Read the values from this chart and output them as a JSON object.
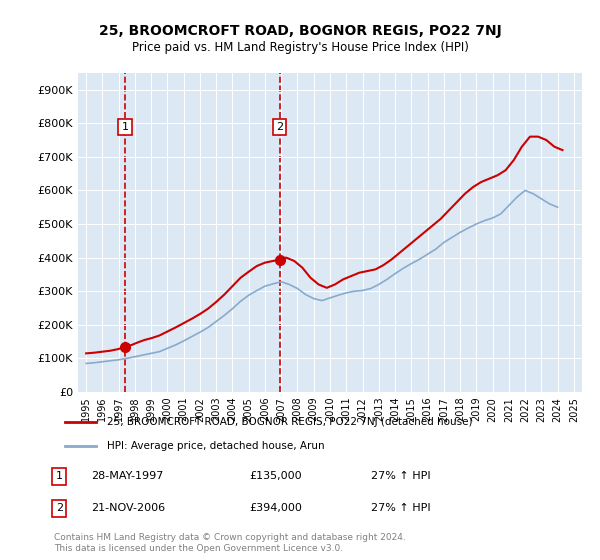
{
  "title": "25, BROOMCROFT ROAD, BOGNOR REGIS, PO22 7NJ",
  "subtitle": "Price paid vs. HM Land Registry's House Price Index (HPI)",
  "legend_line1": "25, BROOMCROFT ROAD, BOGNOR REGIS, PO22 7NJ (detached house)",
  "legend_line2": "HPI: Average price, detached house, Arun",
  "footnote": "Contains HM Land Registry data © Crown copyright and database right 2024.\nThis data is licensed under the Open Government Licence v3.0.",
  "sale1_label": "1",
  "sale1_date": "28-MAY-1997",
  "sale1_price": "£135,000",
  "sale1_hpi": "27% ↑ HPI",
  "sale1_year": 1997.4,
  "sale1_value": 135000,
  "sale2_label": "2",
  "sale2_date": "21-NOV-2006",
  "sale2_price": "£394,000",
  "sale2_hpi": "27% ↑ HPI",
  "sale2_year": 2006.9,
  "sale2_value": 394000,
  "plot_bg": "#dce9f5",
  "line_red": "#cc0000",
  "line_blue": "#88aacc",
  "vline_color": "#cc0000",
  "marker_box_color": "#cc0000",
  "xlim": [
    1994.5,
    2025.5
  ],
  "ylim": [
    0,
    950000
  ],
  "yticks": [
    0,
    100000,
    200000,
    300000,
    400000,
    500000,
    600000,
    700000,
    800000,
    900000
  ],
  "ytick_labels": [
    "£0",
    "£100K",
    "£200K",
    "£300K",
    "£400K",
    "£500K",
    "£600K",
    "£700K",
    "£800K",
    "£900K"
  ],
  "xticks": [
    1995,
    1996,
    1997,
    1998,
    1999,
    2000,
    2001,
    2002,
    2003,
    2004,
    2005,
    2006,
    2007,
    2008,
    2009,
    2010,
    2011,
    2012,
    2013,
    2014,
    2015,
    2016,
    2017,
    2018,
    2019,
    2020,
    2021,
    2022,
    2023,
    2024,
    2025
  ],
  "red_years": [
    1995.0,
    1995.5,
    1996.0,
    1996.5,
    1997.0,
    1997.4,
    1997.8,
    1998.2,
    1998.6,
    1999.0,
    1999.5,
    2000.0,
    2000.5,
    2001.0,
    2001.5,
    2002.0,
    2002.5,
    2003.0,
    2003.5,
    2004.0,
    2004.5,
    2005.0,
    2005.5,
    2006.0,
    2006.5,
    2006.9,
    2007.3,
    2007.8,
    2008.3,
    2008.8,
    2009.3,
    2009.8,
    2010.3,
    2010.8,
    2011.3,
    2011.8,
    2012.3,
    2012.8,
    2013.3,
    2013.8,
    2014.3,
    2014.8,
    2015.3,
    2015.8,
    2016.3,
    2016.8,
    2017.3,
    2017.8,
    2018.3,
    2018.8,
    2019.3,
    2019.8,
    2020.3,
    2020.8,
    2021.3,
    2021.8,
    2022.3,
    2022.8,
    2023.3,
    2023.8,
    2024.3
  ],
  "red_values": [
    115000,
    117000,
    120000,
    123000,
    128000,
    135000,
    140000,
    148000,
    155000,
    160000,
    168000,
    180000,
    192000,
    205000,
    218000,
    232000,
    248000,
    268000,
    290000,
    315000,
    340000,
    358000,
    375000,
    385000,
    390000,
    394000,
    400000,
    390000,
    370000,
    340000,
    320000,
    310000,
    320000,
    335000,
    345000,
    355000,
    360000,
    365000,
    378000,
    395000,
    415000,
    435000,
    455000,
    475000,
    495000,
    515000,
    540000,
    565000,
    590000,
    610000,
    625000,
    635000,
    645000,
    660000,
    690000,
    730000,
    760000,
    760000,
    750000,
    730000,
    720000
  ],
  "blue_years": [
    1995.0,
    1995.5,
    1996.0,
    1996.5,
    1997.0,
    1997.5,
    1998.0,
    1998.5,
    1999.0,
    1999.5,
    2000.0,
    2000.5,
    2001.0,
    2001.5,
    2002.0,
    2002.5,
    2003.0,
    2003.5,
    2004.0,
    2004.5,
    2005.0,
    2005.5,
    2006.0,
    2006.5,
    2007.0,
    2007.5,
    2008.0,
    2008.5,
    2009.0,
    2009.5,
    2010.0,
    2010.5,
    2011.0,
    2011.5,
    2012.0,
    2012.5,
    2013.0,
    2013.5,
    2014.0,
    2014.5,
    2015.0,
    2015.5,
    2016.0,
    2016.5,
    2017.0,
    2017.5,
    2018.0,
    2018.5,
    2019.0,
    2019.5,
    2020.0,
    2020.5,
    2021.0,
    2021.5,
    2022.0,
    2022.5,
    2023.0,
    2023.5,
    2024.0
  ],
  "blue_values": [
    85000,
    87000,
    90000,
    93000,
    96000,
    100000,
    105000,
    110000,
    115000,
    120000,
    130000,
    140000,
    152000,
    165000,
    178000,
    192000,
    210000,
    228000,
    248000,
    270000,
    288000,
    302000,
    315000,
    322000,
    328000,
    320000,
    308000,
    290000,
    278000,
    272000,
    280000,
    288000,
    295000,
    300000,
    302000,
    308000,
    320000,
    335000,
    352000,
    368000,
    382000,
    395000,
    410000,
    425000,
    445000,
    460000,
    475000,
    488000,
    500000,
    510000,
    518000,
    530000,
    555000,
    580000,
    600000,
    590000,
    575000,
    560000,
    550000
  ]
}
